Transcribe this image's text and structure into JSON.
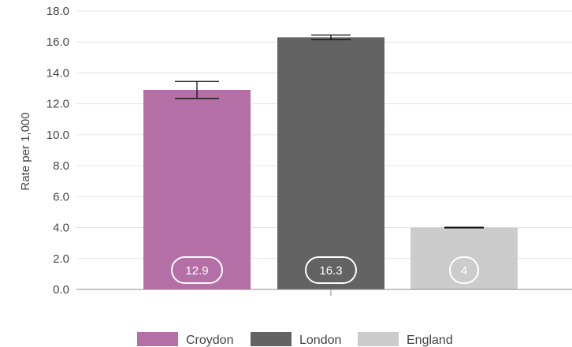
{
  "chart_data": {
    "type": "bar",
    "title": "",
    "xlabel": "",
    "ylabel": "Rate per 1,000",
    "ylim": [
      0,
      18
    ],
    "y_ticks": [
      "0.0",
      "2.0",
      "4.0",
      "6.0",
      "8.0",
      "10.0",
      "12.0",
      "14.0",
      "16.0",
      "18.0"
    ],
    "grid": true,
    "legend_position": "bottom",
    "categories": [
      "Croydon",
      "London",
      "England"
    ],
    "values": [
      12.9,
      16.3,
      4
    ],
    "value_labels": [
      "12.9",
      "16.3",
      "4"
    ],
    "error_bars": [
      {
        "low": 12.35,
        "high": 13.45
      },
      {
        "low": 16.15,
        "high": 16.45
      },
      {
        "low": 3.98,
        "high": 4.02
      }
    ],
    "colors": [
      "#b56fa7",
      "#636363",
      "#cccccc"
    ],
    "legend": [
      "Croydon",
      "London",
      "England"
    ]
  }
}
